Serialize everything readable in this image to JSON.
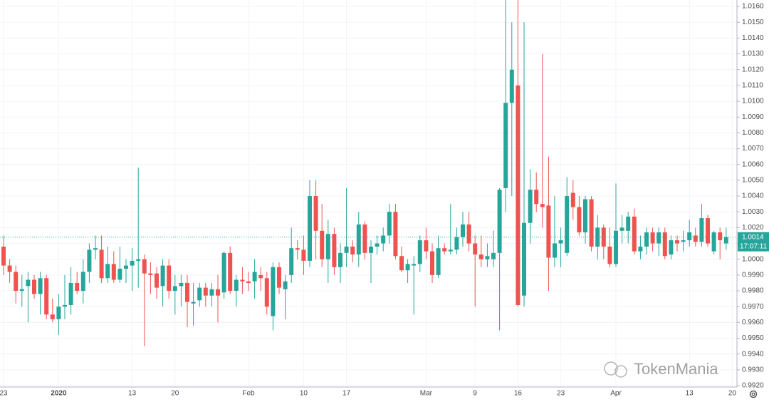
{
  "chart_data": {
    "type": "candlestick",
    "categories": [
      "23",
      null,
      null,
      null,
      null,
      null,
      null,
      null,
      null,
      "2020",
      null,
      null,
      null,
      null,
      null,
      null,
      null,
      null,
      null,
      null,
      null,
      "13",
      null,
      null,
      null,
      null,
      null,
      null,
      "20",
      null,
      null,
      null,
      null,
      null,
      null,
      null,
      null,
      null,
      null,
      null,
      "Feb",
      null,
      null,
      null,
      null,
      null,
      null,
      null,
      null,
      "10",
      null,
      null,
      null,
      null,
      null,
      null,
      "17",
      null,
      null,
      null,
      null,
      null,
      null,
      null,
      null,
      null,
      null,
      null,
      null,
      "Mar",
      null,
      null,
      null,
      null,
      null,
      null,
      null,
      "9",
      null,
      null,
      null,
      null,
      null,
      null,
      "16",
      null,
      null,
      null,
      null,
      null,
      null,
      "23",
      null,
      null,
      null,
      null,
      null,
      null,
      null,
      null,
      "Apr",
      null,
      null,
      null,
      null,
      null,
      null,
      null,
      null,
      null,
      null,
      null,
      "13",
      null,
      null,
      null,
      null,
      null,
      null,
      "20"
    ],
    "open": [
      1.0008,
      0.9996,
      0.9992,
      0.998,
      0.9983,
      0.9987,
      0.9978,
      0.9988,
      0.9965,
      0.9962,
      0.997,
      0.9971,
      0.9985,
      0.998,
      0.9992,
      1.0006,
      1.0006,
      0.9988,
      0.9997,
      0.9987,
      0.9994,
      0.9996,
      0.9999,
      1.0,
      0.9991,
      0.9991,
      0.9983,
      0.9996,
      0.998,
      0.9983,
      0.9985,
      0.9972,
      0.9974,
      0.9982,
      0.9977,
      0.9981,
      0.9979,
      1.0004,
      0.998,
      0.9987,
      0.9986,
      0.9986,
      0.999,
      0.9988,
      0.9964,
      0.9995,
      0.9981,
      0.999,
      1.0007,
      1.0006,
      0.9999,
      1.004,
      1.0018,
      1.0,
      1.0016,
      0.9995,
      1.0004,
      1.0008,
      1.0003,
      1.0022,
      1.0004,
      1.0008,
      1.001,
      1.0015,
      1.003,
      1.0002,
      0.9993,
      0.9996,
      0.9997,
      1.0012,
      1.0005,
      0.999,
      1.0007,
      1.0005,
      1.0006,
      1.0014,
      1.0022,
      1.001,
      1.0003,
      1.0,
      1.0,
      1.0004,
      1.0045,
      1.0099,
      1.011,
      0.9977,
      1.0023,
      1.0044,
      1.0035,
      1.0034,
      1.0001,
      1.001,
      1.0004,
      1.0042,
      1.0033,
      1.0017,
      1.0038,
      1.0008,
      1.002,
      1.0008,
      0.9997,
      1.0018,
      1.0018,
      1.0027,
      1.0005,
      1.0008,
      1.0017,
      1.001,
      1.0017,
      1.0003,
      1.0012,
      1.0011,
      1.0012,
      1.0015,
      1.0011,
      1.0026,
      1.0005,
      1.0017,
      1.001,
      null
    ],
    "high": [
      1.0015,
      1.0,
      0.9996,
      0.999,
      0.9992,
      0.999,
      0.9992,
      0.999,
      0.9975,
      0.9978,
      0.999,
      0.9995,
      0.9992,
      1.0,
      1.001,
      1.0015,
      1.0015,
      1.0008,
      1.0005,
      1.0008,
      1.0,
      1.0007,
      1.0058,
      1.0003,
      0.9998,
      0.9995,
      1.0,
      1.0,
      0.999,
      0.999,
      0.999,
      0.9985,
      0.9985,
      0.9985,
      0.9985,
      0.999,
      1.0005,
      1.0008,
      0.999,
      0.9995,
      0.9992,
      1.0,
      0.9995,
      0.9992,
      0.9998,
      0.9998,
      0.999,
      1.002,
      1.0012,
      1.0015,
      1.005,
      1.005,
      1.0035,
      1.0025,
      1.002,
      1.001,
      1.0045,
      1.0012,
      1.003,
      1.0024,
      1.0012,
      1.0015,
      1.002,
      1.0035,
      1.0035,
      1.0008,
      1.0,
      1.0002,
      1.0015,
      1.002,
      1.001,
      1.0015,
      1.001,
      1.0035,
      1.002,
      1.003,
      1.003,
      1.0015,
      1.0015,
      1.001,
      1.0018,
      1.0045,
      1.0164,
      1.015,
      1.0164,
      1.015,
      1.0057,
      1.0055,
      1.013,
      1.0065,
      1.004,
      1.002,
      1.0052,
      1.005,
      1.004,
      1.004,
      1.004,
      1.0028,
      1.0022,
      1.002,
      1.0048,
      1.0028,
      1.003,
      1.0032,
      1.0015,
      1.002,
      1.002,
      1.002,
      1.002,
      1.0015,
      1.0015,
      1.0018,
      1.0025,
      1.002,
      1.0035,
      1.0028,
      1.0018,
      1.002,
      1.002,
      null
    ],
    "low": [
      0.999,
      0.9985,
      0.9972,
      0.997,
      0.996,
      0.9975,
      0.9965,
      0.9962,
      0.996,
      0.9952,
      0.9962,
      0.9965,
      0.9978,
      0.9972,
      0.9985,
      1.0,
      0.9985,
      0.9985,
      0.9985,
      0.9985,
      0.9985,
      0.998,
      0.9982,
      0.9945,
      0.9978,
      0.9975,
      0.997,
      0.9975,
      0.9965,
      0.997,
      0.9957,
      0.9958,
      0.997,
      0.997,
      0.997,
      0.996,
      0.9975,
      0.9978,
      0.997,
      0.9978,
      0.998,
      0.9975,
      0.998,
      0.9965,
      0.9955,
      0.9978,
      0.9962,
      0.9985,
      1.0,
      0.999,
      0.9995,
      1.0,
      0.9995,
      0.9985,
      0.999,
      0.9985,
      0.9995,
      0.9998,
      0.9995,
      1.0,
      0.9985,
      1.0003,
      1.0005,
      1.001,
      1.0,
      0.9992,
      0.9985,
      0.9965,
      0.9992,
      1.0,
      0.9985,
      0.9988,
      1.0003,
      1.0003,
      1.0003,
      1.0008,
      1.0005,
      0.997,
      0.9995,
      0.9995,
      0.9995,
      0.9955,
      1.003,
      1.004,
      0.997,
      0.997,
      1.001,
      1.003,
      1.002,
      0.998,
      0.9995,
      0.9995,
      1.0002,
      1.0025,
      1.0015,
      1.001,
      1.0005,
      1.0,
      1.0,
      0.9995,
      0.9995,
      1.001,
      1.001,
      1.0003,
      1.0,
      1.0003,
      1.0005,
      1.0002,
      1.0,
      1.0,
      1.0005,
      1.0005,
      1.0008,
      1.0008,
      1.0008,
      1.0008,
      1.0003,
      1.0,
      1.0006,
      null
    ],
    "close": [
      0.9996,
      0.9992,
      0.998,
      0.9981,
      0.9987,
      0.9978,
      0.9988,
      0.9965,
      0.9962,
      0.997,
      0.9971,
      0.9985,
      0.998,
      0.9992,
      1.0006,
      1.0007,
      0.9988,
      0.9997,
      0.9987,
      0.9994,
      0.9996,
      0.9999,
      1.0,
      0.9991,
      0.999,
      0.9982,
      0.9996,
      0.998,
      0.9983,
      0.9985,
      0.9973,
      0.9973,
      0.9982,
      0.9977,
      0.9981,
      0.9977,
      1.0004,
      0.998,
      0.9987,
      0.9986,
      0.9985,
      0.9992,
      0.9988,
      0.997,
      0.9995,
      0.9982,
      0.9986,
      1.0007,
      1.0006,
      0.9999,
      1.004,
      1.0018,
      1.0,
      1.0016,
      0.9995,
      1.0004,
      1.0008,
      1.0003,
      1.0022,
      1.0004,
      1.0008,
      1.001,
      1.0015,
      1.003,
      1.0002,
      0.9993,
      0.9997,
      0.9997,
      1.0012,
      1.0005,
      0.999,
      1.0007,
      1.0005,
      1.0006,
      1.0014,
      1.0022,
      1.001,
      1.0003,
      1.0,
      1.0002,
      1.0004,
      1.0044,
      1.0099,
      1.012,
      0.9971,
      1.0023,
      1.0044,
      1.0035,
      1.0033,
      1.0001,
      1.001,
      1.0012,
      1.004,
      1.0033,
      1.0017,
      1.0038,
      1.0008,
      1.002,
      1.0008,
      0.9997,
      1.0018,
      1.002,
      1.0027,
      1.0005,
      1.0008,
      1.0017,
      1.001,
      1.0017,
      1.0002,
      1.0012,
      1.001,
      1.0012,
      1.0017,
      1.0011,
      1.0026,
      1.001,
      1.0017,
      1.0012,
      1.0014,
      null
    ],
    "up_color": "#26a69a",
    "down_color": "#ef5350",
    "ylim": [
      0.99191,
      1.01641
    ],
    "yticks": [
      {
        "value": 0.992,
        "label": "0.9920"
      },
      {
        "value": 0.993,
        "label": "0.9930"
      },
      {
        "value": 0.994,
        "label": "0.9940"
      },
      {
        "value": 0.995,
        "label": "0.9950"
      },
      {
        "value": 0.996,
        "label": "0.9960"
      },
      {
        "value": 0.997,
        "label": "0.9970"
      },
      {
        "value": 0.998,
        "label": "0.9980"
      },
      {
        "value": 0.999,
        "label": "0.9990"
      },
      {
        "value": 1.0,
        "label": "1.0000"
      },
      {
        "value": 1.001,
        "label": "1.0010"
      },
      {
        "value": 1.002,
        "label": "1.0020"
      },
      {
        "value": 1.003,
        "label": "1.0030"
      },
      {
        "value": 1.004,
        "label": "1.0040"
      },
      {
        "value": 1.005,
        "label": "1.0050"
      },
      {
        "value": 1.006,
        "label": "1.0060"
      },
      {
        "value": 1.007,
        "label": "1.0070"
      },
      {
        "value": 1.008,
        "label": "1.0080"
      },
      {
        "value": 1.009,
        "label": "1.0090"
      },
      {
        "value": 1.01,
        "label": "1.0100"
      },
      {
        "value": 1.011,
        "label": "1.0110"
      },
      {
        "value": 1.012,
        "label": "1.0120"
      },
      {
        "value": 1.013,
        "label": "1.0130"
      },
      {
        "value": 1.014,
        "label": "1.0140"
      },
      {
        "value": 1.015,
        "label": "1.0150"
      },
      {
        "value": 1.016,
        "label": "1.0160"
      }
    ],
    "grid": true,
    "last_price": 1.0014,
    "countdown": "17:07:11",
    "watermark": "TokenMania"
  }
}
